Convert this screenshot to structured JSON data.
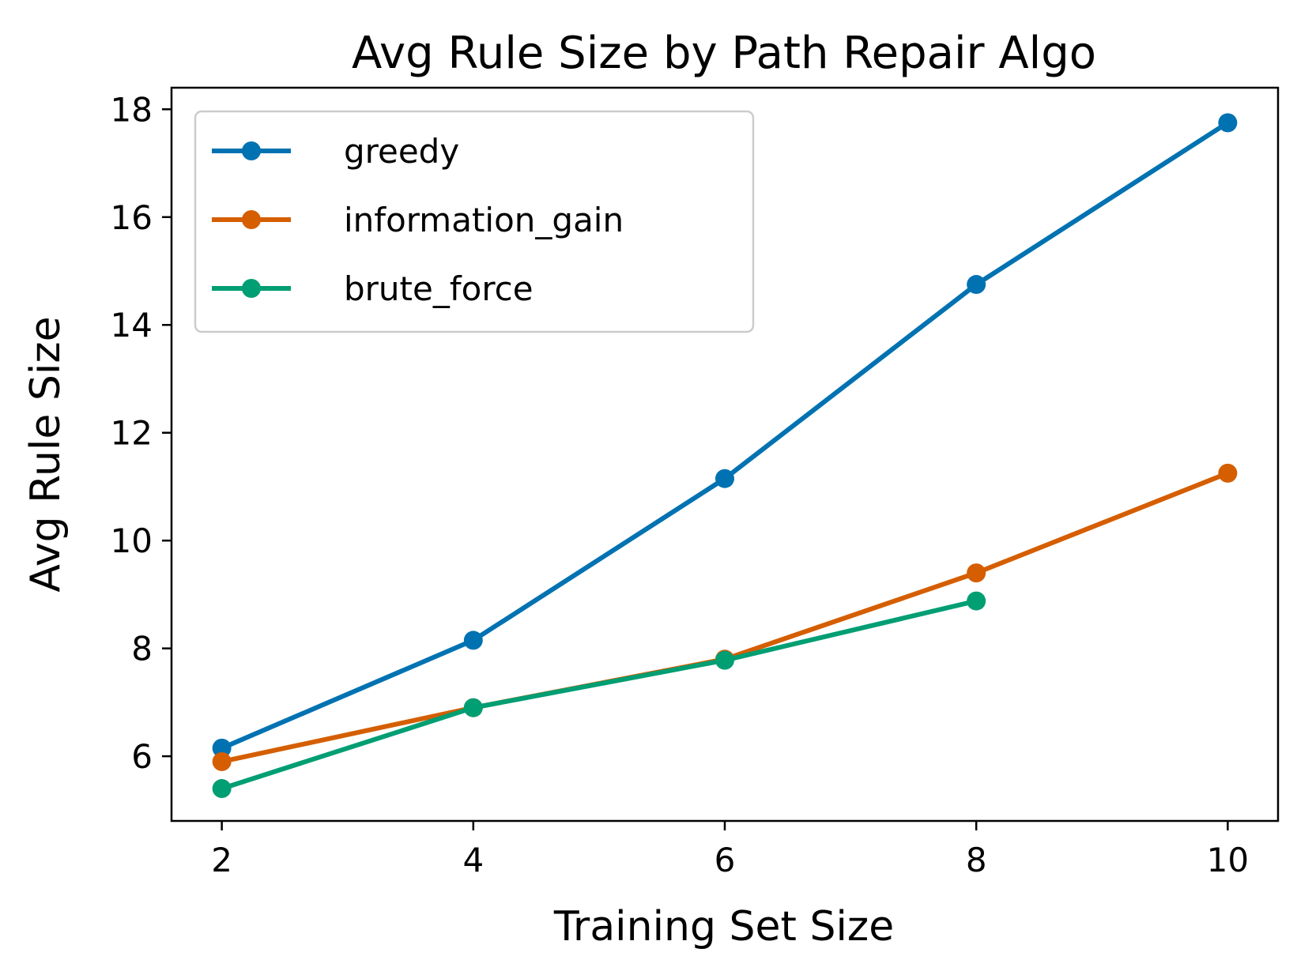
{
  "chart_data": {
    "type": "line",
    "title": "Avg Rule Size by Path Repair Algo",
    "xlabel": "Training Set Size",
    "ylabel": "Avg Rule Size",
    "xlim": [
      1.6,
      10.4
    ],
    "ylim": [
      4.8,
      18.4
    ],
    "x_ticks": [
      2,
      4,
      6,
      8,
      10
    ],
    "y_ticks": [
      6,
      8,
      10,
      12,
      14,
      16,
      18
    ],
    "grid": false,
    "legend_position": "upper-left",
    "series": [
      {
        "name": "greedy",
        "color": "#0072b2",
        "x": [
          2,
          4,
          6,
          8,
          10
        ],
        "y": [
          6.15,
          8.15,
          11.15,
          14.75,
          17.75
        ]
      },
      {
        "name": "information_gain",
        "color": "#d55e00",
        "x": [
          2,
          4,
          6,
          8,
          10
        ],
        "y": [
          5.9,
          6.9,
          7.8,
          9.4,
          11.25
        ]
      },
      {
        "name": "brute_force",
        "color": "#009e73",
        "x": [
          2,
          4,
          6,
          8
        ],
        "y": [
          5.4,
          6.9,
          7.78,
          8.88
        ]
      }
    ]
  }
}
